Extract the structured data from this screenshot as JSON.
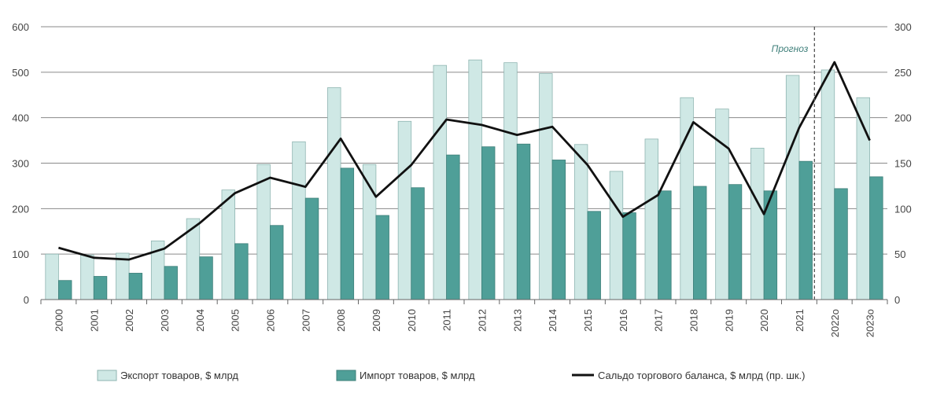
{
  "chart_data": {
    "type": "bar",
    "categories": [
      "2000",
      "2001",
      "2002",
      "2003",
      "2004",
      "2005",
      "2006",
      "2007",
      "2008",
      "2009",
      "2010",
      "2011",
      "2012",
      "2013",
      "2014",
      "2015",
      "2016",
      "2017",
      "2018",
      "2019",
      "2020",
      "2021",
      "2022о",
      "2023о"
    ],
    "series": [
      {
        "name": "Экспорт товаров, $ млрд",
        "type": "bar",
        "axis": "left",
        "color": "#cfe8e5",
        "values": [
          100,
          98,
          102,
          129,
          178,
          241,
          297,
          347,
          466,
          297,
          392,
          515,
          527,
          521,
          497,
          341,
          282,
          353,
          444,
          419,
          333,
          493,
          505,
          444
        ]
      },
      {
        "name": "Импорт товаров, $ млрд",
        "type": "bar",
        "axis": "left",
        "color": "#4f9f98",
        "values": [
          42,
          51,
          58,
          73,
          94,
          123,
          163,
          223,
          289,
          185,
          246,
          318,
          336,
          342,
          307,
          194,
          191,
          239,
          249,
          253,
          239,
          304,
          244,
          270
        ]
      },
      {
        "name": "Сальдо торгового баланса, $ млрд (пр. шк.)",
        "type": "line",
        "axis": "right",
        "color": "#111111",
        "values": [
          57,
          46,
          44,
          56,
          84,
          117,
          134,
          124,
          177,
          113,
          148,
          198,
          192,
          181,
          190,
          148,
          91,
          115,
          195,
          166,
          94,
          189,
          261,
          175
        ]
      }
    ],
    "y_left": {
      "min": 0,
      "max": 600,
      "ticks": [
        "0",
        "100",
        "200",
        "300",
        "400",
        "500",
        "600"
      ]
    },
    "y_right": {
      "min": 0,
      "max": 300,
      "ticks": [
        "0",
        "50",
        "100",
        "150",
        "200",
        "250",
        "300"
      ]
    },
    "forecast_label": "Прогноз",
    "forecast_from": "2022о",
    "grid": true,
    "legend_position": "bottom"
  }
}
